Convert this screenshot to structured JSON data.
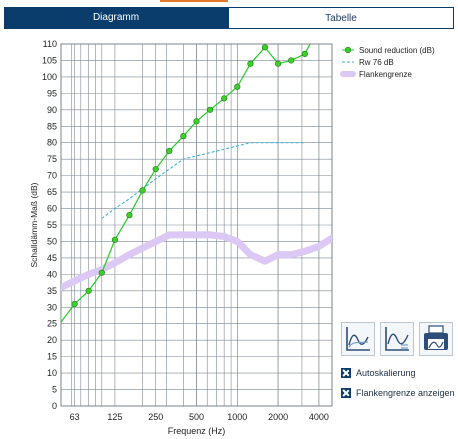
{
  "tabs": {
    "diagram_label": "Diagramm",
    "table_label": "Tabelle"
  },
  "colors": {
    "accent": "#0a3d6b",
    "orange_accent": "#e0792a",
    "series_green": "#22cc22",
    "point_green": "#3ecf2b",
    "rw_blue": "#33aadd",
    "flank_lavender": "#dcc8f5"
  },
  "chart_data": {
    "type": "line",
    "xlabel": "Frequenz (Hz)",
    "ylabel": "Schalldämm-Maß (dB)",
    "x_scale": "log",
    "xlim": [
      50,
      5000
    ],
    "ylim": [
      0,
      110
    ],
    "x_ticks": [
      {
        "value": 63,
        "label": "63"
      },
      {
        "value": 125,
        "label": "125"
      },
      {
        "value": 250,
        "label": "250"
      },
      {
        "value": 500,
        "label": "500"
      },
      {
        "value": 1000,
        "label": "1000"
      },
      {
        "value": 2000,
        "label": "2000"
      },
      {
        "value": 4000,
        "label": "4000"
      }
    ],
    "y_ticks": [
      0,
      5,
      10,
      15,
      20,
      25,
      30,
      35,
      40,
      45,
      50,
      55,
      60,
      65,
      70,
      75,
      80,
      85,
      90,
      95,
      100,
      105,
      110
    ],
    "grid": true,
    "legend_position": "top-right",
    "series": [
      {
        "name": "Sound reduction (dB)",
        "style": "line+markers",
        "color": "#22cc22",
        "x": [
          50,
          63,
          80,
          100,
          125,
          160,
          200,
          250,
          315,
          400,
          500,
          630,
          800,
          1000,
          1250,
          1600,
          2000,
          2500,
          3150,
          4000
        ],
        "y": [
          25.5,
          31,
          35,
          40.5,
          50.5,
          58,
          65.5,
          72,
          77.5,
          82,
          86.5,
          90,
          93.5,
          97,
          104,
          109,
          104,
          105,
          107,
          115
        ]
      },
      {
        "name": "Rw 76 dB",
        "style": "dashed",
        "color": "#33aadd",
        "x": [
          100,
          125,
          160,
          200,
          250,
          315,
          400,
          500,
          630,
          800,
          1000,
          1250,
          1600,
          2000,
          2500,
          3150
        ],
        "y": [
          57,
          60,
          63,
          66,
          69,
          72,
          75,
          76,
          77,
          78,
          79,
          80,
          80,
          80,
          80,
          80
        ]
      },
      {
        "name": "Flankengrenze",
        "style": "thick",
        "color": "#dcc8f5",
        "x": [
          50,
          63,
          80,
          100,
          125,
          160,
          200,
          250,
          315,
          400,
          500,
          630,
          800,
          1000,
          1250,
          1600,
          2000,
          2500,
          3150,
          4000,
          5000
        ],
        "y": [
          36,
          38,
          40,
          41.5,
          43.5,
          46,
          48,
          50,
          52,
          52,
          52,
          52,
          51.5,
          50,
          46,
          44,
          46,
          46,
          47,
          48.5,
          51
        ]
      }
    ]
  },
  "controls": {
    "icon_buttons": [
      {
        "name": "chart-view-1-icon"
      },
      {
        "name": "chart-view-2-icon"
      },
      {
        "name": "print-chart-icon"
      }
    ],
    "autoscale_label": "Autoskalierung",
    "autoscale_checked": true,
    "show_flank_label": "Flankengrenze anzeigen",
    "show_flank_checked": true
  }
}
